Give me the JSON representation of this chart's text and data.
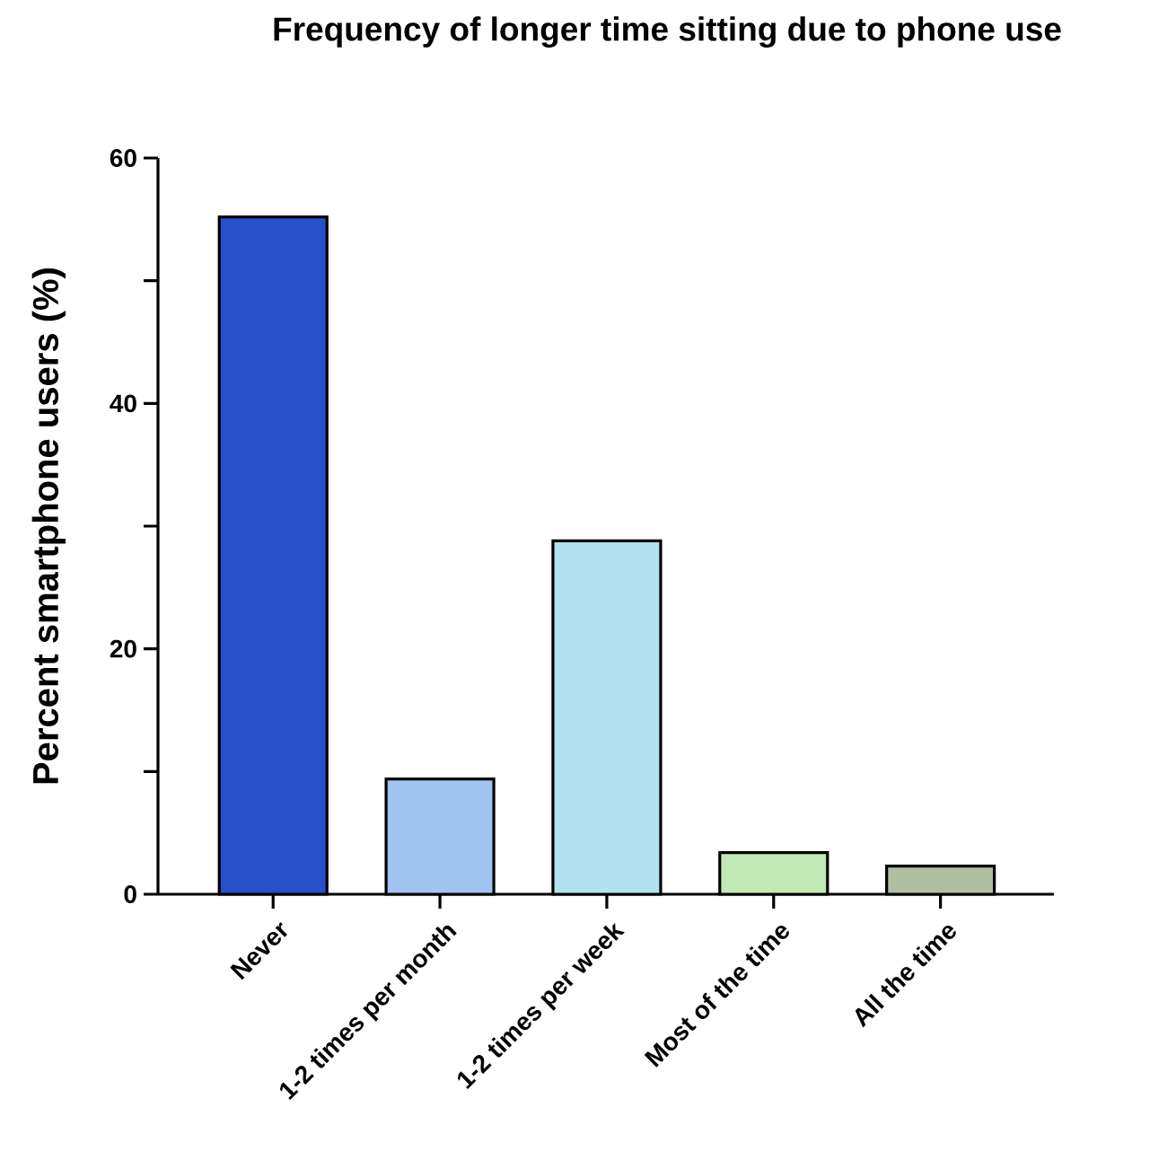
{
  "chart_data": {
    "type": "bar",
    "title": "Frequency of longer time sitting due to phone use",
    "ylabel": "Percent smartphone users (%)",
    "categories": [
      "Never",
      "1-2 times per month",
      "1-2 times per week",
      "Most of the time",
      "All the time"
    ],
    "values": [
      55.2,
      9.4,
      28.8,
      3.4,
      2.3
    ],
    "colors": [
      "#2850c8",
      "#a0c4ef",
      "#b2e2f0",
      "#c2e8b6",
      "#b0bea2"
    ],
    "ylim": [
      0,
      60
    ],
    "yticks": [
      0,
      {
        "value": 10,
        "label": null
      },
      20,
      {
        "value": 30,
        "label": null
      },
      40,
      {
        "value": 50,
        "label": null
      },
      60
    ],
    "grid": false
  }
}
